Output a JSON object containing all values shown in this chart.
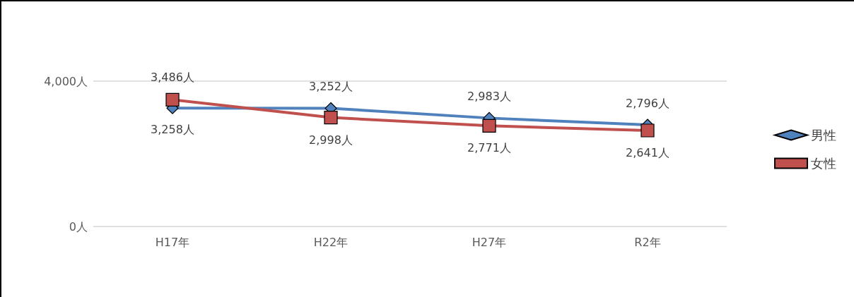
{
  "chart_data": {
    "type": "line",
    "categories": [
      "H17年",
      "H22年",
      "H27年",
      "R2年"
    ],
    "series": [
      {
        "name": "男性",
        "color": "#4f81bd",
        "marker": "diamond",
        "values": [
          3258,
          3252,
          2983,
          2796
        ],
        "value_labels": [
          "3,258人",
          "3,252人",
          "2,983人",
          "2,796人"
        ]
      },
      {
        "name": "女性",
        "color": "#c0504d",
        "marker": "square",
        "values": [
          3486,
          2998,
          2771,
          2641
        ],
        "value_labels": [
          "3,486人",
          "2,998人",
          "2,771人",
          "2,641人"
        ]
      }
    ],
    "ylim": [
      0,
      4000
    ],
    "yticks": [
      {
        "value": 0,
        "label": "0人"
      },
      {
        "value": 4000,
        "label": "4,000人"
      }
    ],
    "grid": "y",
    "legend": "right",
    "line_style": "solid"
  }
}
